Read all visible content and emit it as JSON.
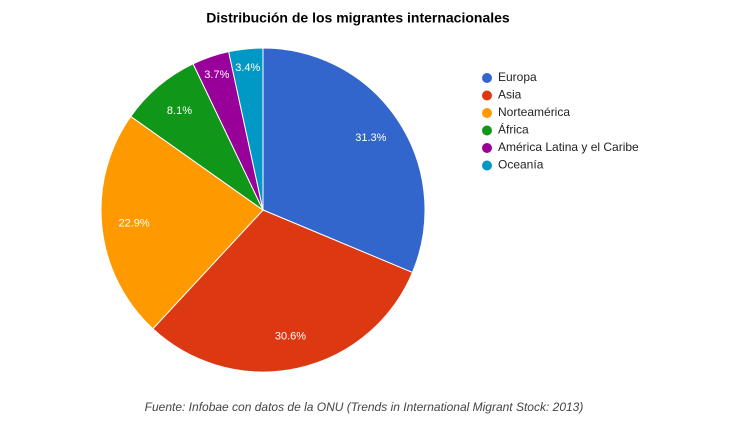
{
  "chart_data": {
    "type": "pie",
    "title": "Distribución de los migrantes internacionales",
    "categories": [
      "Europa",
      "Asia",
      "Norteamérica",
      "África",
      "América Latina y el Caribe",
      "Oceanía"
    ],
    "values": [
      31.3,
      30.6,
      22.9,
      8.1,
      3.7,
      3.4
    ],
    "value_labels": [
      "31.3%",
      "30.6%",
      "22.9%",
      "8.1%",
      "3.7%",
      "3.4%"
    ],
    "colors": [
      "#3366cc",
      "#dc3912",
      "#ff9900",
      "#109618",
      "#990099",
      "#0099c6"
    ],
    "legend": "right",
    "source": "Fuente: Infobae con datos de la ONU (Trends in International Migrant Stock: 2013)"
  }
}
